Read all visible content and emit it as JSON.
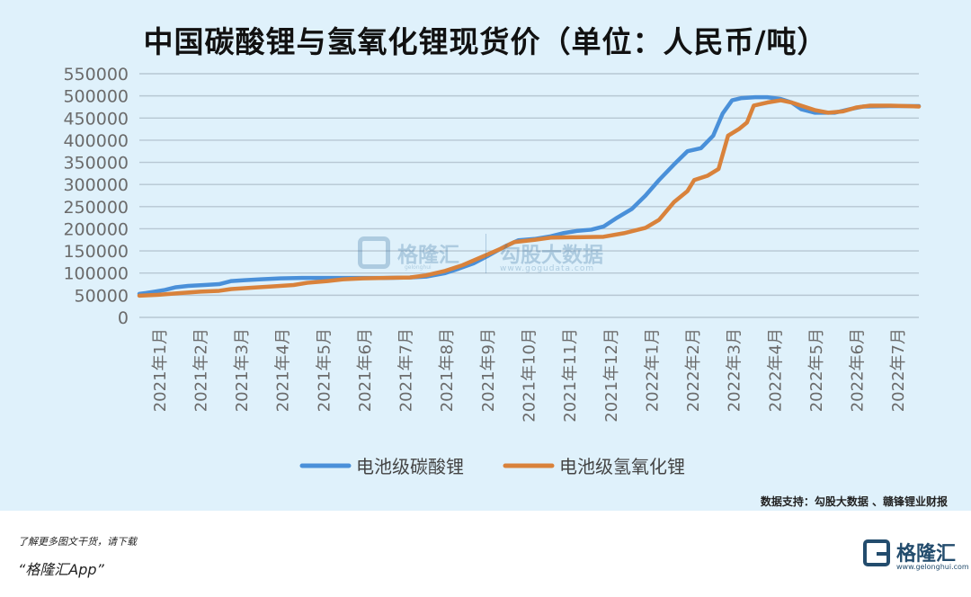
{
  "title": "中国碳酸锂与氢氧化锂现货价（单位：人民币/吨）",
  "source_note": "数据支持：勾股大数据 、赣锋锂业财报",
  "watermark": {
    "brand_text": "格隆汇",
    "brand_small": "gelonghui",
    "data_text": "勾股大数据",
    "data_url": "www.gogudata.com"
  },
  "footer": {
    "promo_line": "了解更多图文干货，请下载",
    "app_line": "“格隆汇App”",
    "brand_name": "格隆汇",
    "brand_url": "www.gelonghui.com"
  },
  "colors": {
    "series_blue": "#4a90d9",
    "series_orange": "#d9823b",
    "panel_bg": "#dff1fb",
    "grid": "#b7c7d3",
    "axis_text": "#6b6b6b"
  },
  "chart_data": {
    "type": "line",
    "title": "中国碳酸锂与氢氧化锂现货价（单位：人民币/吨）",
    "xlabel": "",
    "ylabel": "",
    "x_range": [
      "2021-01-01",
      "2022-07-31"
    ],
    "ylim": [
      0,
      550000
    ],
    "y_ticks": [
      0,
      50000,
      100000,
      150000,
      200000,
      250000,
      300000,
      350000,
      400000,
      450000,
      500000,
      550000
    ],
    "x_tick_labels": [
      "2021年1月",
      "2021年2月",
      "2021年3月",
      "2021年4月",
      "2021年5月",
      "2021年6月",
      "2021年7月",
      "2021年8月",
      "2021年9月",
      "2021年10月",
      "2021年11月",
      "2021年12月",
      "2022年1月",
      "2022年2月",
      "2022年3月",
      "2022年4月",
      "2022年5月",
      "2022年6月",
      "2022年7月"
    ],
    "grid": true,
    "legend": "bottom",
    "series": [
      {
        "name": "电池级碳酸锂",
        "color": "#4a90d9",
        "points": [
          [
            "2021-01-01",
            53000
          ],
          [
            "2021-01-06",
            55000
          ],
          [
            "2021-01-12",
            58000
          ],
          [
            "2021-01-20",
            62000
          ],
          [
            "2021-01-28",
            68000
          ],
          [
            "2021-02-06",
            71000
          ],
          [
            "2021-02-18",
            73000
          ],
          [
            "2021-03-01",
            75000
          ],
          [
            "2021-03-10",
            82000
          ],
          [
            "2021-03-20",
            84000
          ],
          [
            "2021-04-01",
            86000
          ],
          [
            "2021-04-15",
            88000
          ],
          [
            "2021-05-01",
            89000
          ],
          [
            "2021-06-01",
            89000
          ],
          [
            "2021-06-20",
            89000
          ],
          [
            "2021-07-01",
            89000
          ],
          [
            "2021-07-20",
            90000
          ],
          [
            "2021-08-01",
            92000
          ],
          [
            "2021-08-15",
            100000
          ],
          [
            "2021-08-25",
            110000
          ],
          [
            "2021-09-05",
            122000
          ],
          [
            "2021-09-15",
            138000
          ],
          [
            "2021-09-28",
            160000
          ],
          [
            "2021-10-08",
            174000
          ],
          [
            "2021-10-20",
            177000
          ],
          [
            "2021-11-01",
            183000
          ],
          [
            "2021-11-10",
            190000
          ],
          [
            "2021-11-20",
            195000
          ],
          [
            "2021-12-01",
            198000
          ],
          [
            "2021-12-10",
            205000
          ],
          [
            "2021-12-20",
            225000
          ],
          [
            "2021-12-31",
            245000
          ],
          [
            "2022-01-10",
            275000
          ],
          [
            "2022-01-20",
            310000
          ],
          [
            "2022-01-31",
            345000
          ],
          [
            "2022-02-10",
            375000
          ],
          [
            "2022-02-20",
            382000
          ],
          [
            "2022-03-01",
            410000
          ],
          [
            "2022-03-08",
            460000
          ],
          [
            "2022-03-15",
            490000
          ],
          [
            "2022-03-22",
            495000
          ],
          [
            "2022-04-01",
            497000
          ],
          [
            "2022-04-10",
            497000
          ],
          [
            "2022-04-20",
            493000
          ],
          [
            "2022-04-28",
            485000
          ],
          [
            "2022-05-05",
            470000
          ],
          [
            "2022-05-15",
            462000
          ],
          [
            "2022-05-30",
            462000
          ],
          [
            "2022-06-10",
            470000
          ],
          [
            "2022-06-20",
            476000
          ],
          [
            "2022-07-10",
            477000
          ],
          [
            "2022-07-31",
            477000
          ]
        ]
      },
      {
        "name": "电池级氢氧化锂",
        "color": "#d9823b",
        "points": [
          [
            "2021-01-01",
            49000
          ],
          [
            "2021-01-15",
            51000
          ],
          [
            "2021-02-01",
            55000
          ],
          [
            "2021-02-15",
            58000
          ],
          [
            "2021-03-01",
            60000
          ],
          [
            "2021-03-10",
            64000
          ],
          [
            "2021-03-25",
            67000
          ],
          [
            "2021-04-10",
            70000
          ],
          [
            "2021-04-25",
            73000
          ],
          [
            "2021-05-05",
            78000
          ],
          [
            "2021-05-20",
            82000
          ],
          [
            "2021-06-01",
            86000
          ],
          [
            "2021-06-15",
            88000
          ],
          [
            "2021-07-01",
            89000
          ],
          [
            "2021-07-20",
            90000
          ],
          [
            "2021-08-01",
            95000
          ],
          [
            "2021-08-15",
            105000
          ],
          [
            "2021-08-28",
            118000
          ],
          [
            "2021-09-10",
            135000
          ],
          [
            "2021-09-25",
            155000
          ],
          [
            "2021-10-05",
            170000
          ],
          [
            "2021-10-20",
            175000
          ],
          [
            "2021-11-01",
            180000
          ],
          [
            "2021-11-20",
            181000
          ],
          [
            "2021-12-10",
            182000
          ],
          [
            "2021-12-25",
            190000
          ],
          [
            "2022-01-10",
            202000
          ],
          [
            "2022-01-20",
            220000
          ],
          [
            "2022-01-31",
            260000
          ],
          [
            "2022-02-10",
            285000
          ],
          [
            "2022-02-15",
            310000
          ],
          [
            "2022-02-25",
            320000
          ],
          [
            "2022-03-05",
            335000
          ],
          [
            "2022-03-12",
            410000
          ],
          [
            "2022-03-20",
            425000
          ],
          [
            "2022-03-26",
            440000
          ],
          [
            "2022-03-31",
            478000
          ],
          [
            "2022-04-10",
            485000
          ],
          [
            "2022-04-20",
            490000
          ],
          [
            "2022-04-28",
            485000
          ],
          [
            "2022-05-05",
            478000
          ],
          [
            "2022-05-15",
            468000
          ],
          [
            "2022-05-25",
            462000
          ],
          [
            "2022-06-05",
            465000
          ],
          [
            "2022-06-15",
            474000
          ],
          [
            "2022-06-25",
            478000
          ],
          [
            "2022-07-10",
            478000
          ],
          [
            "2022-07-31",
            476000
          ]
        ]
      }
    ]
  }
}
